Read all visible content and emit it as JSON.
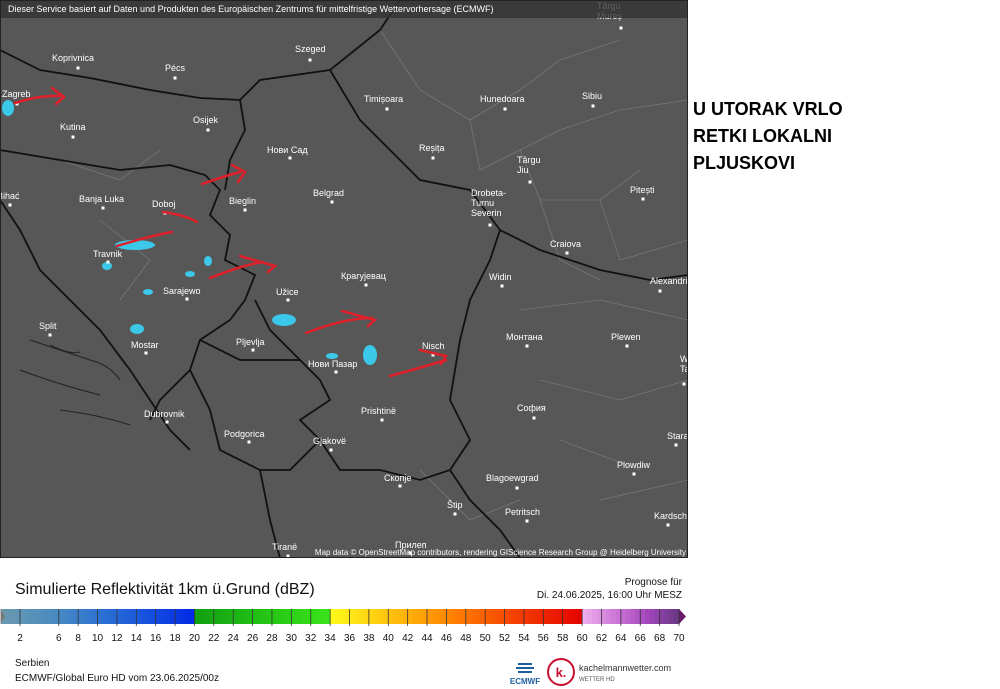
{
  "header": {
    "notice": "Dieser Service basiert auf Daten und Produkten des Europäischen Zentrums für mittelfristige Wettervorhersage (ECMWF)"
  },
  "map": {
    "cities": [
      {
        "label": [
          "Târgu",
          "Mureș"
        ]
      },
      {
        "label": [
          "Koprivnica"
        ]
      },
      {
        "label": [
          "Pécs"
        ]
      },
      {
        "label": [
          "Szeged"
        ]
      },
      {
        "label": [
          "Zagreb"
        ]
      },
      {
        "label": [
          "Kutina"
        ]
      },
      {
        "label": [
          "Osijek"
        ]
      },
      {
        "label": [
          "Timișoara"
        ]
      },
      {
        "label": [
          "Hunedoara"
        ]
      },
      {
        "label": [
          "Sibiu"
        ]
      },
      {
        "label": [
          "Нови Сад"
        ]
      },
      {
        "label": [
          "Reșița"
        ]
      },
      {
        "label": [
          "Târgu",
          "Jiu"
        ]
      },
      {
        "label": [
          "Pitești"
        ]
      },
      {
        "label": [
          "Belgrad"
        ]
      },
      {
        "label": [
          "Bieglin"
        ]
      },
      {
        "label": [
          "Banja Luka"
        ]
      },
      {
        "label": [
          "Doboj"
        ]
      },
      {
        "label": [
          "Bihać"
        ]
      },
      {
        "label": [
          "Drobeta-",
          "Turnu",
          "Severin"
        ]
      },
      {
        "label": [
          "Craiova"
        ]
      },
      {
        "label": [
          "Travnik"
        ]
      },
      {
        "label": [
          "Sarajewo"
        ]
      },
      {
        "label": [
          "Крагујевац"
        ]
      },
      {
        "label": [
          "Užice"
        ]
      },
      {
        "label": [
          "Widin"
        ]
      },
      {
        "label": [
          "Alexandria"
        ]
      },
      {
        "label": [
          "Split"
        ]
      },
      {
        "label": [
          "Mostar"
        ]
      },
      {
        "label": [
          "Pljevlja"
        ]
      },
      {
        "label": [
          "Монтана"
        ]
      },
      {
        "label": [
          "Plewen"
        ]
      },
      {
        "label": [
          "Nisch"
        ]
      },
      {
        "label": [
          "Нови Пазар"
        ]
      },
      {
        "label": [
          "Weliko",
          "Tarnowo"
        ]
      },
      {
        "label": [
          "Dubrovnik"
        ]
      },
      {
        "label": [
          "Prishtinë"
        ]
      },
      {
        "label": [
          "София"
        ]
      },
      {
        "label": [
          "Stara Sagora"
        ]
      },
      {
        "label": [
          "Podgorica"
        ]
      },
      {
        "label": [
          "Gjakovë"
        ]
      },
      {
        "label": [
          "Plowdiw"
        ]
      },
      {
        "label": [
          "Скопје"
        ]
      },
      {
        "label": [
          "Blagoewgrad"
        ]
      },
      {
        "label": [
          "Kardschali"
        ]
      },
      {
        "label": [
          "Štip"
        ]
      },
      {
        "label": [
          "Petritsch"
        ]
      },
      {
        "label": [
          "Прилеп"
        ]
      },
      {
        "label": [
          "Tiranë"
        ]
      }
    ],
    "attribution": "Map data © OpenStreetMap contributors, rendering GIScience Research Group @ Heidelberg University"
  },
  "annotation": {
    "lines": [
      "U UTORAK VRLO",
      "RETKI LOKALNI",
      "PLJUSKOVI"
    ]
  },
  "legend": {
    "title": "Simulierte Reflektivität 1km ü.Grund (dBZ)",
    "forecast_label": "Prognose für",
    "forecast_time": "Di. 24.06.2025, 16:00 Uhr MESZ",
    "scale_ticks": [
      2,
      6,
      8,
      10,
      12,
      14,
      16,
      18,
      20,
      22,
      24,
      26,
      28,
      30,
      32,
      34,
      36,
      38,
      40,
      42,
      44,
      46,
      48,
      50,
      52,
      54,
      56,
      58,
      60,
      62,
      64,
      66,
      68,
      70
    ]
  },
  "footer": {
    "region": "Serbien",
    "model": "ECMWF/Global Euro HD vom  23.06.2025/00z",
    "ecmwf_logo": "ECMWF",
    "brand_icon": "k.",
    "brand": "kachelmannwetter.com",
    "brand_sub": "WETTER HD"
  }
}
